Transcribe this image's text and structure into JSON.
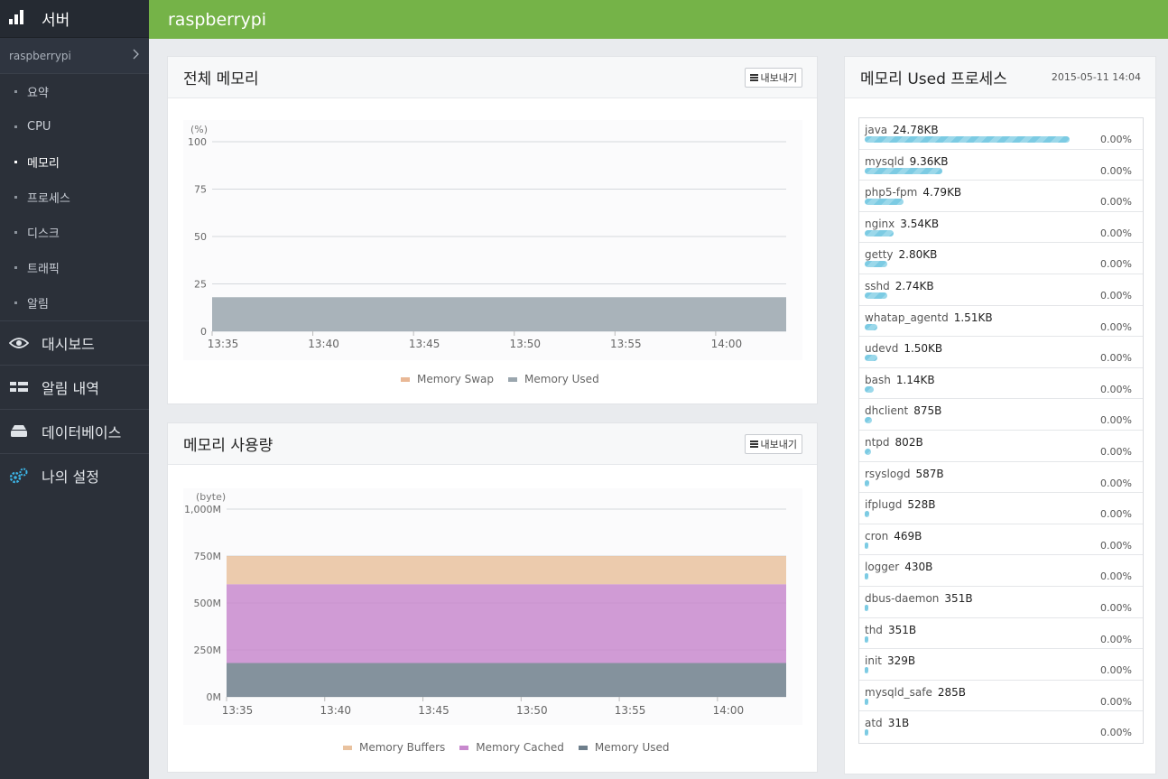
{
  "sidebar": {
    "title": "서버",
    "server_name": "raspberrypi",
    "sub_items": [
      {
        "label": "요약",
        "active": false
      },
      {
        "label": "CPU",
        "active": false
      },
      {
        "label": "메모리",
        "active": true
      },
      {
        "label": "프로세스",
        "active": false
      },
      {
        "label": "디스크",
        "active": false
      },
      {
        "label": "트래픽",
        "active": false
      },
      {
        "label": "알림",
        "active": false
      }
    ],
    "main_items": [
      {
        "label": "대시보드",
        "icon": "eye-icon"
      },
      {
        "label": "알림 내역",
        "icon": "list-icon"
      },
      {
        "label": "데이터베이스",
        "icon": "database-icon"
      },
      {
        "label": "나의 설정",
        "icon": "gears-icon"
      }
    ]
  },
  "topbar": {
    "title": "raspberrypi"
  },
  "colors": {
    "accent": "#75b348",
    "sidebar": "#2b3039",
    "bar": "#7ccbe3"
  },
  "panels": {
    "total_memory": {
      "title": "전체 메모리",
      "export_label": "내보내기"
    },
    "memory_usage": {
      "title": "메모리 사용량",
      "export_label": "내보내기"
    },
    "process": {
      "title": "메모리 Used 프로세스",
      "timestamp": "2015-05-11 14:04"
    }
  },
  "chart_data": [
    {
      "type": "area",
      "ylabel": "(%)",
      "ylim": [
        0,
        100
      ],
      "yticks": [
        "100",
        "75",
        "50",
        "25",
        "0"
      ],
      "x": [
        "13:35",
        "13:40",
        "13:45",
        "13:50",
        "13:55",
        "14:00"
      ],
      "series": [
        {
          "name": "Memory Swap",
          "color": "#e9b896",
          "values": [
            0,
            0,
            0,
            0,
            0,
            0
          ]
        },
        {
          "name": "Memory Used",
          "color": "#9aa6ae",
          "values": [
            18,
            18,
            18,
            18,
            18,
            18
          ]
        }
      ],
      "grid": true,
      "legend": "bottom"
    },
    {
      "type": "area",
      "ylabel": "(byte)",
      "ylim": [
        0,
        1000
      ],
      "yticks": [
        "1,000M",
        "750M",
        "500M",
        "250M",
        "0M"
      ],
      "x": [
        "13:35",
        "13:40",
        "13:45",
        "13:50",
        "13:55",
        "14:00"
      ],
      "series": [
        {
          "name": "Memory Buffers",
          "color": "#e9c29f",
          "values": [
            150,
            150,
            150,
            150,
            150,
            150
          ]
        },
        {
          "name": "Memory Cached",
          "color": "#c889ce",
          "values": [
            420,
            420,
            420,
            420,
            420,
            420
          ]
        },
        {
          "name": "Memory Used",
          "color": "#6e7f8c",
          "values": [
            180,
            180,
            180,
            180,
            180,
            180
          ]
        }
      ],
      "grid": true,
      "legend": "bottom"
    }
  ],
  "processes": [
    {
      "name": "java",
      "size": "24.78KB",
      "fraction": 1.0,
      "pct": "0.00%"
    },
    {
      "name": "mysqld",
      "size": "9.36KB",
      "fraction": 0.38,
      "pct": "0.00%"
    },
    {
      "name": "php5-fpm",
      "size": "4.79KB",
      "fraction": 0.19,
      "pct": "0.00%"
    },
    {
      "name": "nginx",
      "size": "3.54KB",
      "fraction": 0.14,
      "pct": "0.00%"
    },
    {
      "name": "getty",
      "size": "2.80KB",
      "fraction": 0.11,
      "pct": "0.00%"
    },
    {
      "name": "sshd",
      "size": "2.74KB",
      "fraction": 0.11,
      "pct": "0.00%"
    },
    {
      "name": "whatap_agentd",
      "size": "1.51KB",
      "fraction": 0.06,
      "pct": "0.00%"
    },
    {
      "name": "udevd",
      "size": "1.50KB",
      "fraction": 0.06,
      "pct": "0.00%"
    },
    {
      "name": "bash",
      "size": "1.14KB",
      "fraction": 0.046,
      "pct": "0.00%"
    },
    {
      "name": "dhclient",
      "size": "875B",
      "fraction": 0.035,
      "pct": "0.00%"
    },
    {
      "name": "ntpd",
      "size": "802B",
      "fraction": 0.032,
      "pct": "0.00%"
    },
    {
      "name": "rsyslogd",
      "size": "587B",
      "fraction": 0.024,
      "pct": "0.00%"
    },
    {
      "name": "ifplugd",
      "size": "528B",
      "fraction": 0.021,
      "pct": "0.00%"
    },
    {
      "name": "cron",
      "size": "469B",
      "fraction": 0.019,
      "pct": "0.00%"
    },
    {
      "name": "logger",
      "size": "430B",
      "fraction": 0.017,
      "pct": "0.00%"
    },
    {
      "name": "dbus-daemon",
      "size": "351B",
      "fraction": 0.014,
      "pct": "0.00%"
    },
    {
      "name": "thd",
      "size": "351B",
      "fraction": 0.014,
      "pct": "0.00%"
    },
    {
      "name": "init",
      "size": "329B",
      "fraction": 0.013,
      "pct": "0.00%"
    },
    {
      "name": "mysqld_safe",
      "size": "285B",
      "fraction": 0.012,
      "pct": "0.00%"
    },
    {
      "name": "atd",
      "size": "31B",
      "fraction": 0.0,
      "pct": "0.00%"
    }
  ]
}
